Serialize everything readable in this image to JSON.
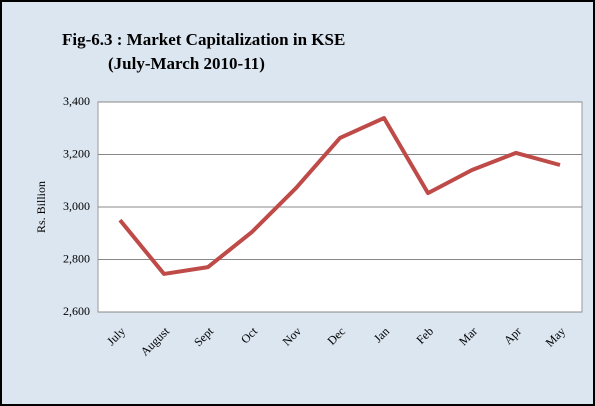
{
  "chart_data": {
    "type": "line",
    "title": "Fig-6.3 : Market Capitalization in KSE",
    "subtitle": "(July-March 2010-11)",
    "y_label": "Rs. Billion",
    "categories": [
      "July",
      "August",
      "Sept",
      "Oct",
      "Nov",
      "Dec",
      "Jan",
      "Feb",
      "Mar",
      "Apr",
      "May"
    ],
    "series": [
      {
        "name": "Market Capitalization",
        "color": "#be4b48",
        "values": [
          2950,
          2745,
          2771,
          2905,
          3072,
          3263,
          3339,
          3053,
          3141,
          3206,
          3160
        ]
      }
    ],
    "ylim": [
      2600,
      3400
    ],
    "yticks": [
      {
        "value": 2600,
        "label": "2,600"
      },
      {
        "value": 2800,
        "label": "2,800"
      },
      {
        "value": 3000,
        "label": "3,000"
      },
      {
        "value": 3200,
        "label": "3,200"
      },
      {
        "value": 3400,
        "label": "3,400"
      }
    ],
    "grid": true
  }
}
